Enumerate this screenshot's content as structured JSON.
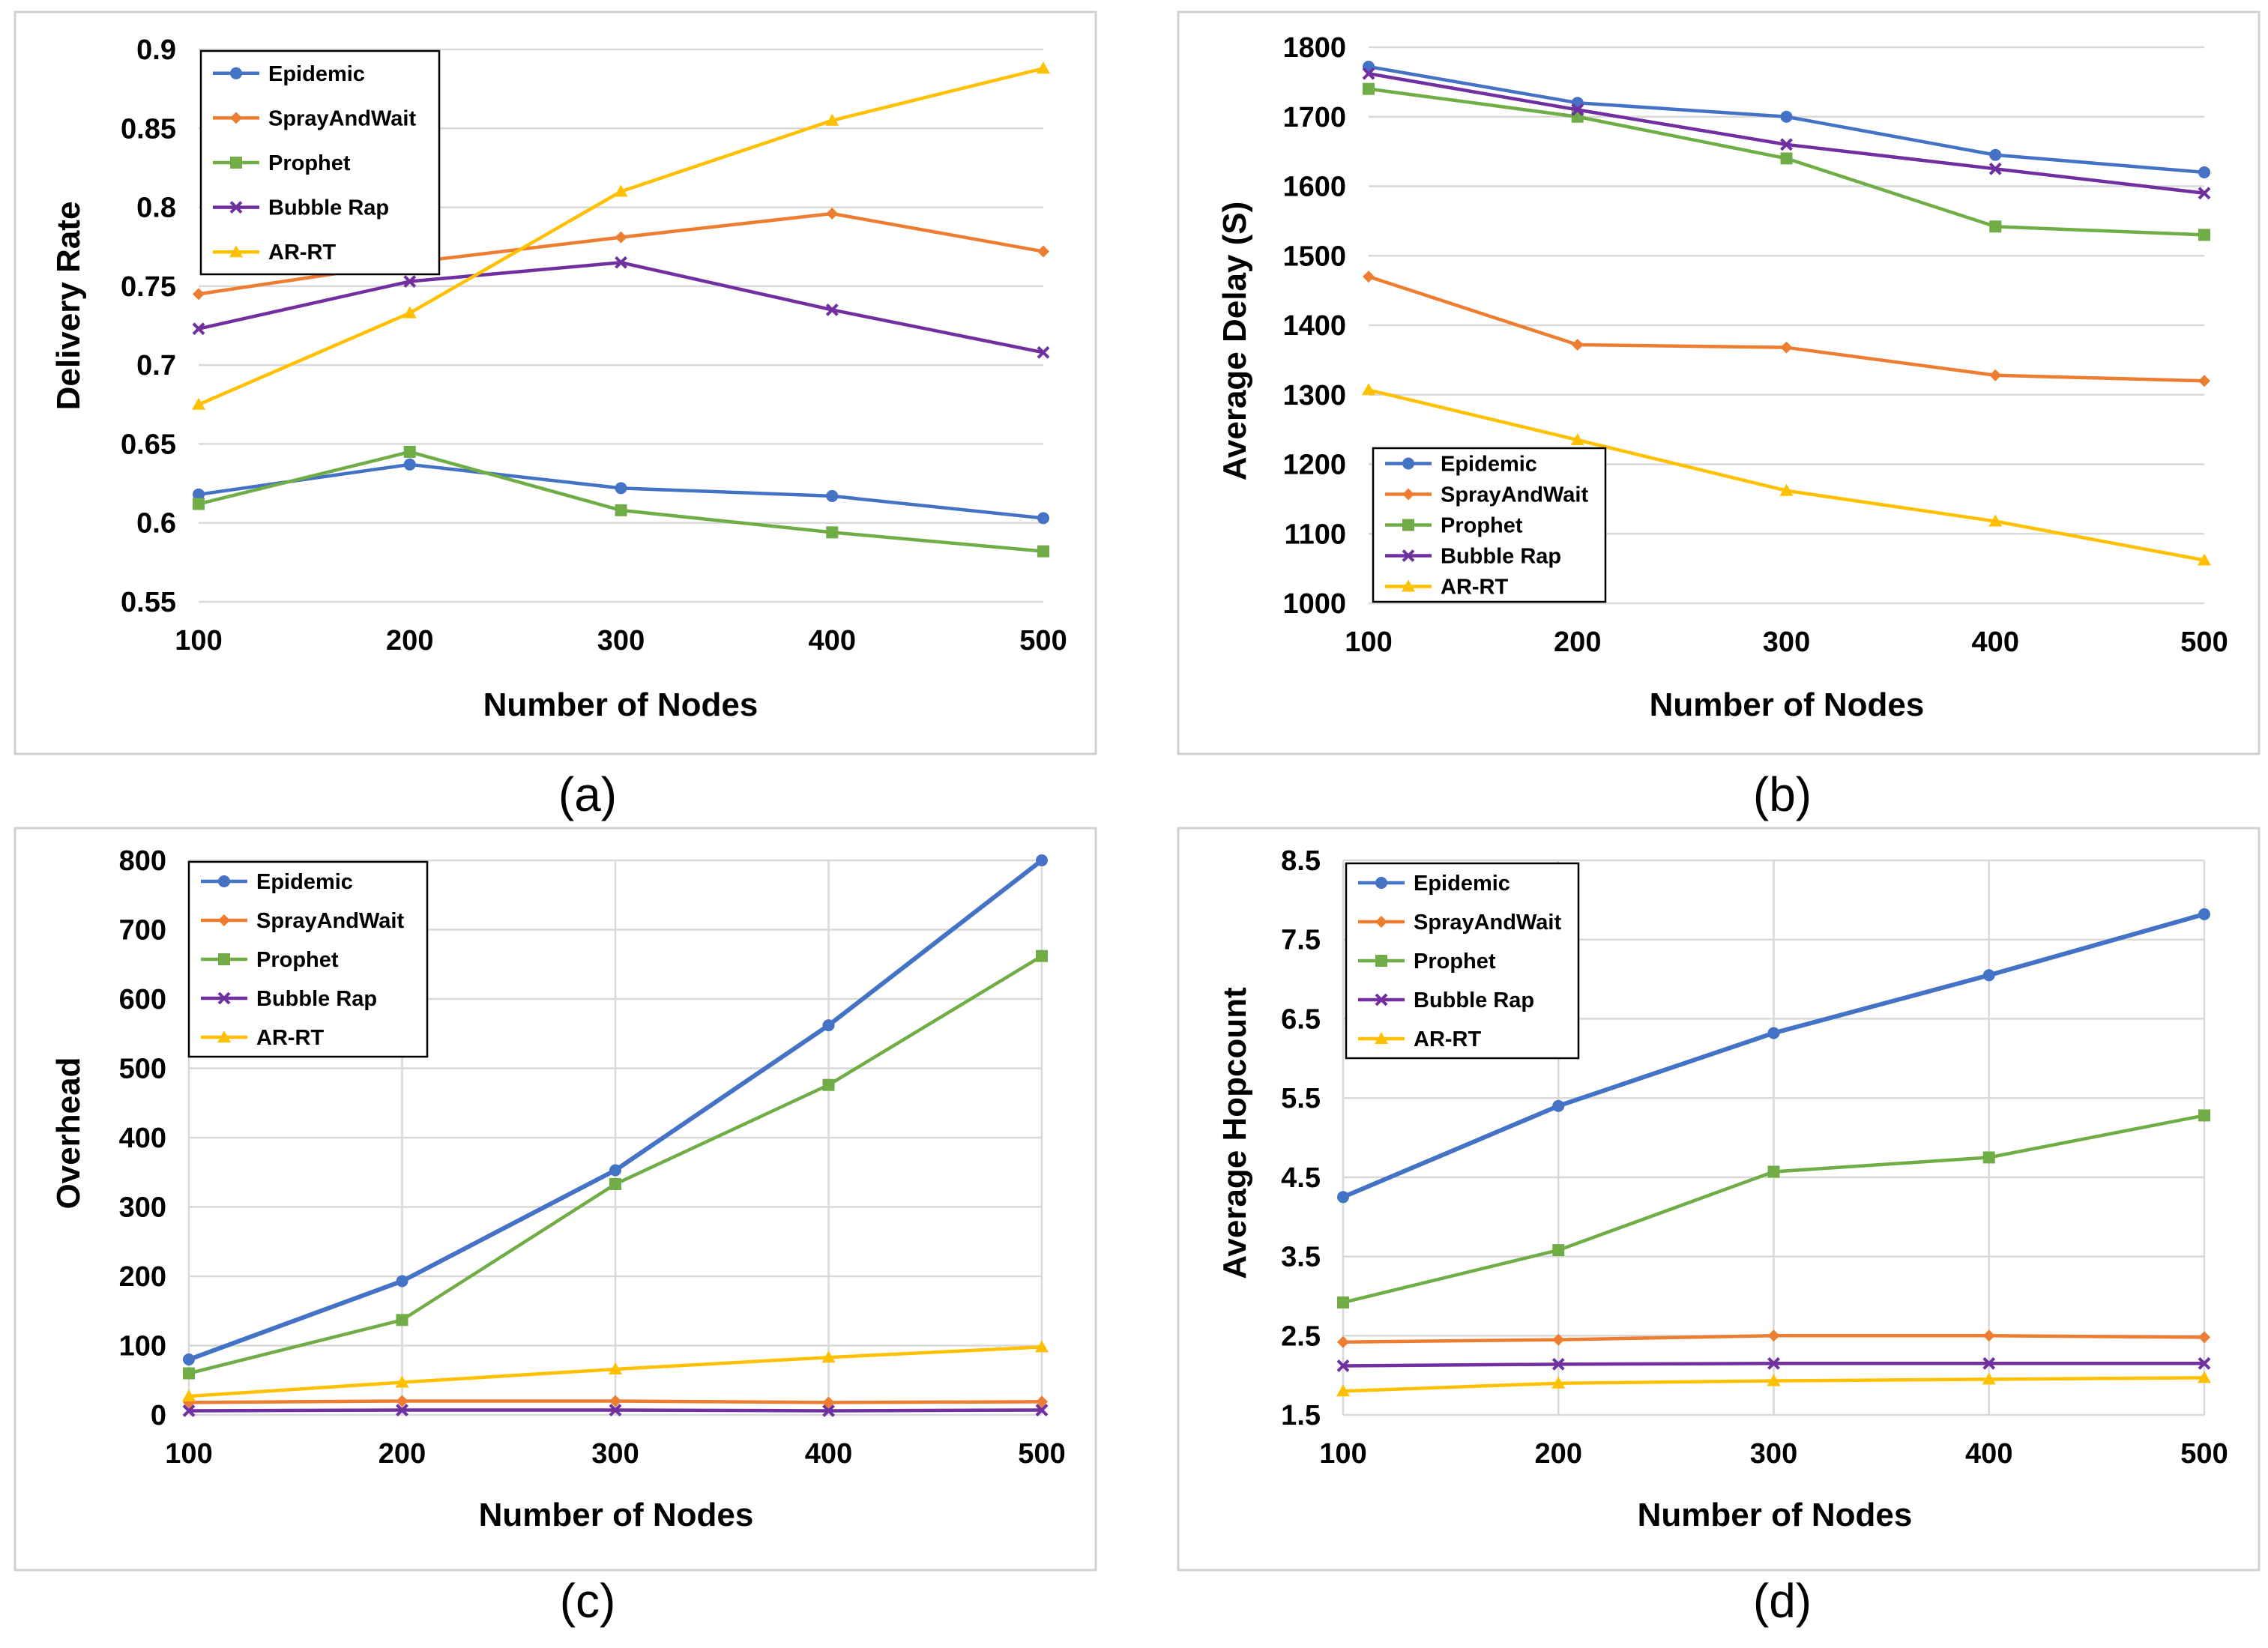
{
  "colors": {
    "Epidemic": "#4472C4",
    "SprayAndWait": "#ED7D31",
    "Prophet": "#70AD47",
    "Bubble Rap": "#7030A0",
    "AR-RT": "#FFC000"
  },
  "chart_data": [
    {
      "type": "line",
      "caption": "(a)",
      "xlabel": "Number of Nodes",
      "ylabel": "Delivery Rate",
      "categories": [
        "100",
        "200",
        "300",
        "400",
        "500"
      ],
      "ylim": [
        0.55,
        0.9
      ],
      "yticks": [
        "0.55",
        "0.6",
        "0.65",
        "0.7",
        "0.75",
        "0.8",
        "0.85",
        "0.9"
      ],
      "legend": "top-left",
      "grid": "horizontal",
      "series": [
        {
          "name": "Epidemic",
          "marker": "circle",
          "values": [
            0.618,
            0.637,
            0.622,
            0.617,
            0.603
          ]
        },
        {
          "name": "SprayAndWait",
          "marker": "diamond",
          "values": [
            0.745,
            0.765,
            0.781,
            0.796,
            0.772
          ]
        },
        {
          "name": "Prophet",
          "marker": "square",
          "values": [
            0.612,
            0.645,
            0.608,
            0.594,
            0.582
          ]
        },
        {
          "name": "Bubble Rap",
          "marker": "x",
          "values": [
            0.723,
            0.753,
            0.765,
            0.735,
            0.708
          ]
        },
        {
          "name": "AR-RT",
          "marker": "triangle",
          "values": [
            0.675,
            0.733,
            0.81,
            0.855,
            0.888
          ]
        }
      ]
    },
    {
      "type": "line",
      "caption": "(b)",
      "xlabel": "Number of Nodes",
      "ylabel": "Average Delay (S)",
      "categories": [
        "100",
        "200",
        "300",
        "400",
        "500"
      ],
      "ylim": [
        1000,
        1800
      ],
      "yticks": [
        "1000",
        "1100",
        "1200",
        "1300",
        "1400",
        "1500",
        "1600",
        "1700",
        "1800"
      ],
      "legend": "bottom-left",
      "grid": "horizontal",
      "series": [
        {
          "name": "Epidemic",
          "marker": "circle",
          "values": [
            1772,
            1720,
            1700,
            1645,
            1620
          ]
        },
        {
          "name": "SprayAndWait",
          "marker": "diamond",
          "values": [
            1470,
            1372,
            1368,
            1328,
            1320
          ]
        },
        {
          "name": "Prophet",
          "marker": "square",
          "values": [
            1740,
            1700,
            1640,
            1542,
            1530
          ]
        },
        {
          "name": "Bubble Rap",
          "marker": "x",
          "values": [
            1762,
            1710,
            1660,
            1625,
            1590
          ]
        },
        {
          "name": "AR-RT",
          "marker": "triangle",
          "values": [
            1307,
            1235,
            1162,
            1118,
            1062
          ]
        }
      ]
    },
    {
      "type": "line",
      "caption": "(c)",
      "xlabel": "Number of Nodes",
      "ylabel": "Overhead",
      "categories": [
        "100",
        "200",
        "300",
        "400",
        "500"
      ],
      "ylim": [
        0,
        800
      ],
      "yticks": [
        "0",
        "100",
        "200",
        "300",
        "400",
        "500",
        "600",
        "700",
        "800"
      ],
      "legend": "top-left",
      "grid": "both",
      "series": [
        {
          "name": "Epidemic",
          "marker": "circle",
          "values": [
            80,
            193,
            353,
            562,
            800
          ]
        },
        {
          "name": "SprayAndWait",
          "marker": "diamond",
          "values": [
            18,
            20,
            20,
            18,
            19
          ]
        },
        {
          "name": "Prophet",
          "marker": "square",
          "values": [
            60,
            137,
            333,
            476,
            662
          ]
        },
        {
          "name": "Bubble Rap",
          "marker": "x",
          "values": [
            6,
            7,
            7,
            6,
            7
          ]
        },
        {
          "name": "AR-RT",
          "marker": "triangle",
          "values": [
            27,
            47,
            66,
            83,
            98
          ]
        }
      ]
    },
    {
      "type": "line",
      "caption": "(d)",
      "xlabel": "Number of Nodes",
      "ylabel": "Average Hopcount",
      "categories": [
        "100",
        "200",
        "300",
        "400",
        "500"
      ],
      "ylim": [
        1.5,
        8.5
      ],
      "yticks": [
        "1.5",
        "2.5",
        "3.5",
        "4.5",
        "5.5",
        "6.5",
        "7.5",
        "8.5"
      ],
      "legend": "top-left",
      "grid": "both",
      "series": [
        {
          "name": "Epidemic",
          "marker": "circle",
          "values": [
            4.25,
            5.4,
            6.32,
            7.05,
            7.82
          ]
        },
        {
          "name": "SprayAndWait",
          "marker": "diamond",
          "values": [
            2.42,
            2.45,
            2.5,
            2.5,
            2.48
          ]
        },
        {
          "name": "Prophet",
          "marker": "square",
          "values": [
            2.92,
            3.58,
            4.57,
            4.75,
            5.28
          ]
        },
        {
          "name": "Bubble Rap",
          "marker": "x",
          "values": [
            2.12,
            2.14,
            2.15,
            2.15,
            2.15
          ]
        },
        {
          "name": "AR-RT",
          "marker": "triangle",
          "values": [
            1.8,
            1.9,
            1.93,
            1.95,
            1.97
          ]
        }
      ]
    }
  ]
}
